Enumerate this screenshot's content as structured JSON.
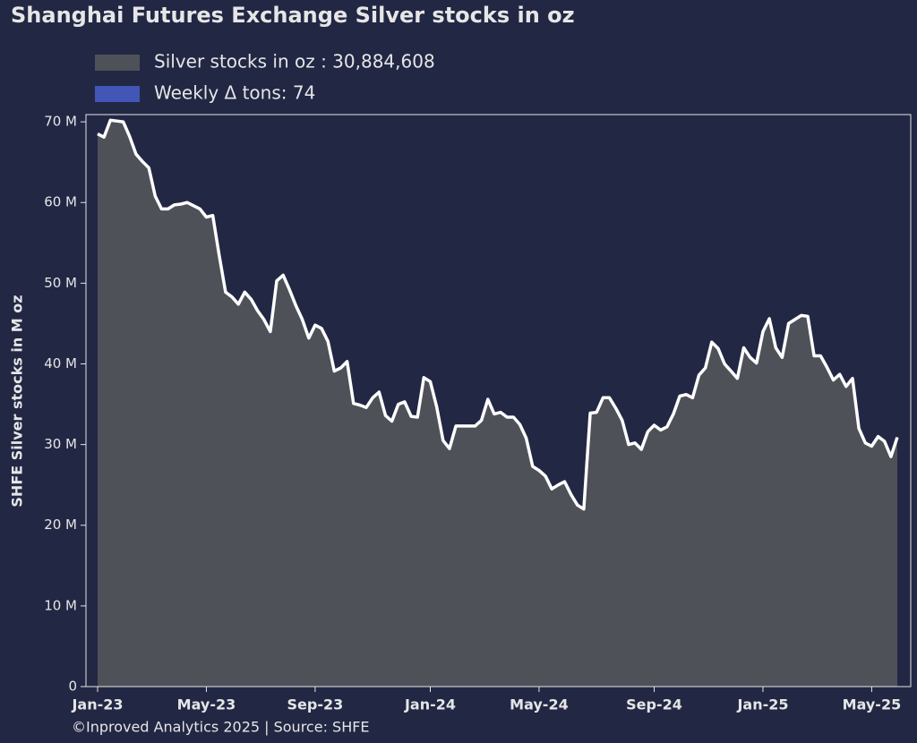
{
  "chart_data": {
    "type": "area",
    "title": "Shanghai Futures Exchange Silver stocks in oz",
    "ylabel": "SHFE Silver stocks in M oz",
    "footer": "©Inproved Analytics 2025 | Source: SHFE",
    "categories": [
      "Jan-23",
      null,
      null,
      null,
      null,
      null,
      null,
      null,
      null,
      null,
      null,
      null,
      null,
      null,
      null,
      null,
      null,
      "May-23",
      null,
      null,
      null,
      null,
      null,
      null,
      null,
      null,
      null,
      null,
      null,
      null,
      null,
      null,
      null,
      null,
      "Sep-23",
      null,
      null,
      null,
      null,
      null,
      null,
      null,
      null,
      null,
      null,
      null,
      null,
      null,
      null,
      null,
      null,
      null,
      "Jan-24",
      null,
      null,
      null,
      null,
      null,
      null,
      null,
      null,
      null,
      null,
      null,
      null,
      null,
      null,
      null,
      null,
      "May-24",
      null,
      null,
      null,
      null,
      null,
      null,
      null,
      null,
      null,
      null,
      null,
      null,
      null,
      null,
      null,
      null,
      null,
      "Sep-24",
      null,
      null,
      null,
      null,
      null,
      null,
      null,
      null,
      null,
      null,
      null,
      null,
      null,
      null,
      null,
      null,
      "Jan-25",
      null,
      null,
      null,
      null,
      null,
      null,
      null,
      null,
      null,
      null,
      null,
      null,
      null,
      null,
      null,
      null,
      "May-25",
      null,
      null,
      null,
      null
    ],
    "series": [
      {
        "name": "Silver stocks in oz : 30,884,608",
        "color": "#4f5159",
        "line_color": "#ffffff",
        "values": [
          68.5,
          68.1,
          70.2,
          70.1,
          70.0,
          68.2,
          66.0,
          65.1,
          64.3,
          60.8,
          59.2,
          59.2,
          59.7,
          59.8,
          60.0,
          59.6,
          59.2,
          58.2,
          58.4,
          53.5,
          48.9,
          48.3,
          47.4,
          48.9,
          48.0,
          46.6,
          45.5,
          44.0,
          50.3,
          51.0,
          49.2,
          47.2,
          45.5,
          43.2,
          44.8,
          44.4,
          42.8,
          39.1,
          39.5,
          40.3,
          35.1,
          34.9,
          34.6,
          35.8,
          36.5,
          33.6,
          32.9,
          35.0,
          35.3,
          33.5,
          33.4,
          38.3,
          37.8,
          34.7,
          30.5,
          29.5,
          32.3,
          32.3,
          32.3,
          32.3,
          33.0,
          35.6,
          33.8,
          34.0,
          33.4,
          33.4,
          32.5,
          30.8,
          27.3,
          26.8,
          26.1,
          24.5,
          25.0,
          25.4,
          23.8,
          22.5,
          22.0,
          33.9,
          34.0,
          35.8,
          35.8,
          34.5,
          33.0,
          30.0,
          30.2,
          29.4,
          31.6,
          32.4,
          31.8,
          32.2,
          33.8,
          36.0,
          36.2,
          35.8,
          38.6,
          39.5,
          42.7,
          41.9,
          40.0,
          39.1,
          38.2,
          42.0,
          40.8,
          40.1,
          44.0,
          45.6,
          42.0,
          40.8,
          45.0,
          45.5,
          46.0,
          45.9,
          41.0,
          41.0,
          39.6,
          38.0,
          38.7,
          37.2,
          38.2,
          32.0,
          30.2,
          29.8,
          31.0,
          30.4,
          28.5,
          30.9
        ]
      }
    ],
    "extra_legend": [
      {
        "name": "Weekly Δ tons: 74",
        "color": "#4256b8"
      }
    ],
    "ylim": [
      0,
      70.9
    ],
    "yticks": [
      {
        "value": 0,
        "label": "0"
      },
      {
        "value": 10,
        "label": "10 M"
      },
      {
        "value": 20,
        "label": "20 M"
      },
      {
        "value": 30,
        "label": "30 M"
      },
      {
        "value": 40,
        "label": "40 M"
      },
      {
        "value": 50,
        "label": "50 M"
      },
      {
        "value": 60,
        "label": "60 M"
      },
      {
        "value": 70,
        "label": "70 M"
      }
    ]
  }
}
